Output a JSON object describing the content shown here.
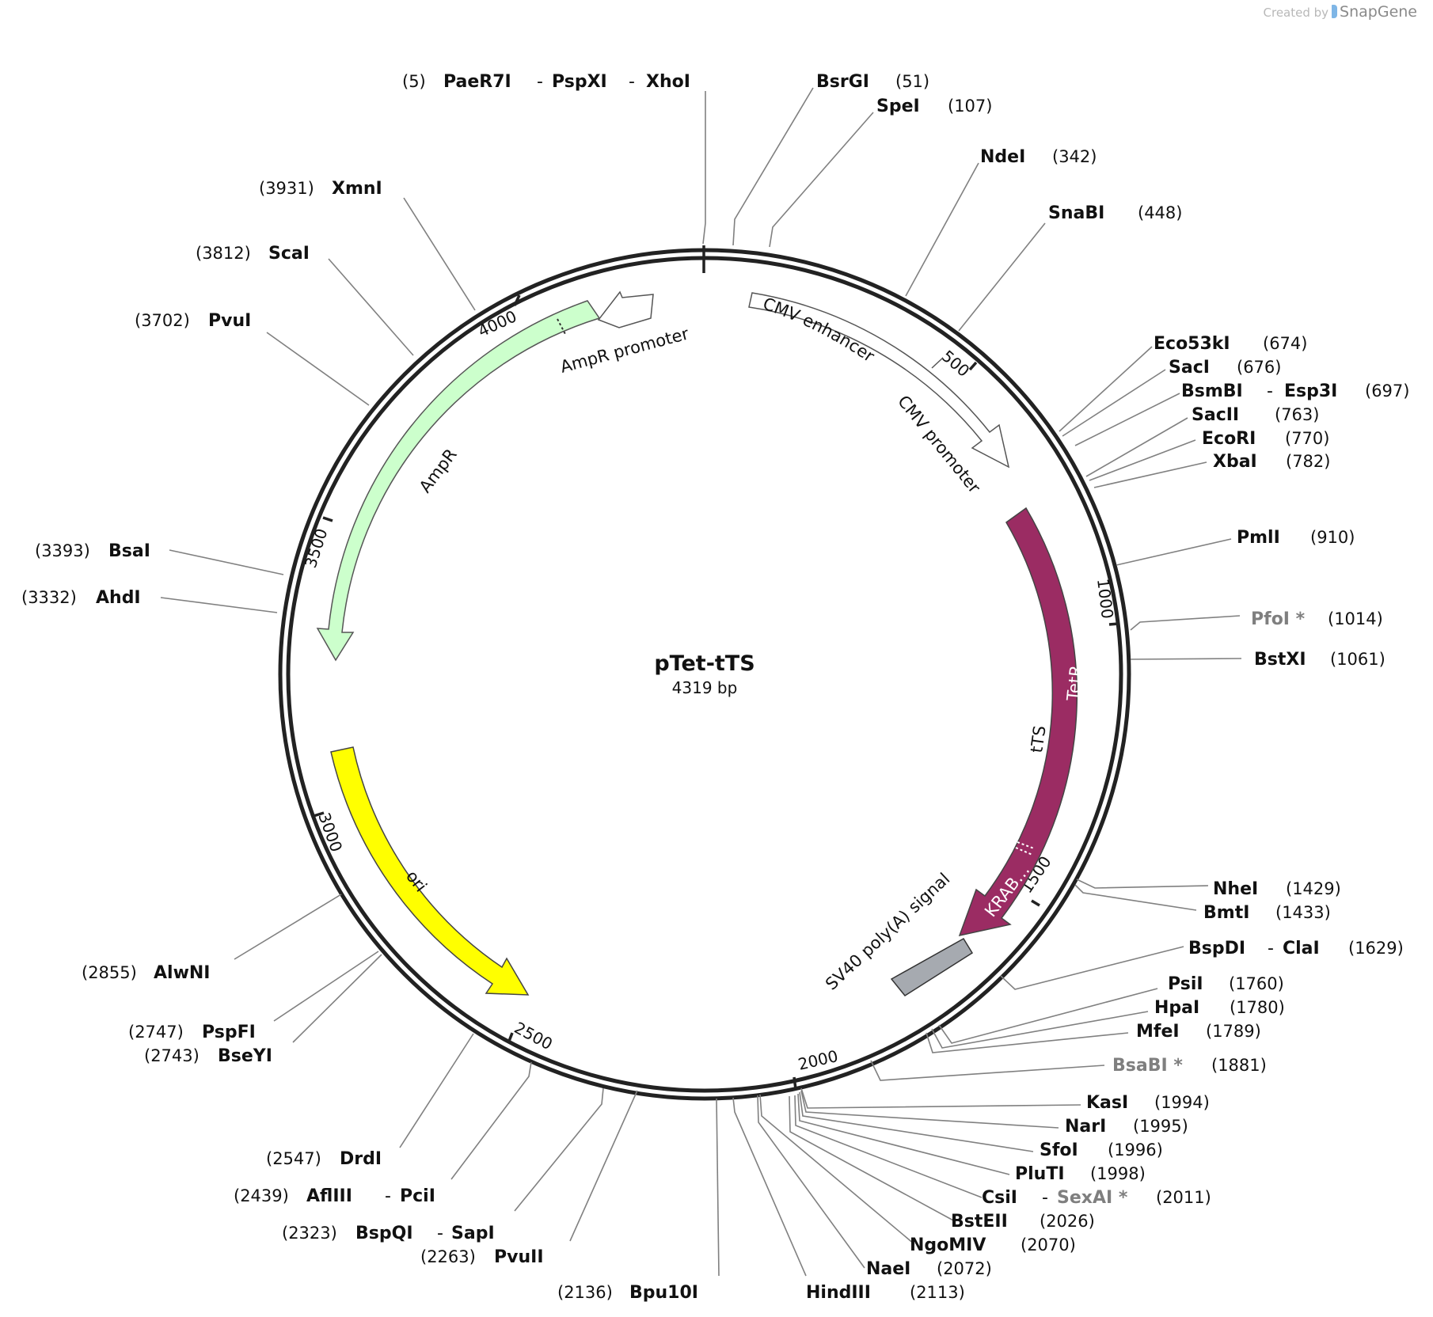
{
  "credit": {
    "prefix": "Created by",
    "brand": "SnapGene"
  },
  "plasmid": {
    "name": "pTet-tTS",
    "size_label": "4319 bp"
  },
  "ticks": [
    "500",
    "1000",
    "1500",
    "2000",
    "2500",
    "3000",
    "3500",
    "4000"
  ],
  "features": [
    {
      "name": "CMV enhancer",
      "type": "enhancer",
      "color": "#ffffff"
    },
    {
      "name": "CMV promoter",
      "type": "promoter",
      "color": "#ffffff"
    },
    {
      "name": "tTS",
      "type": "CDS",
      "color": "#9b2c63"
    },
    {
      "name": "TetR",
      "type": "CDS region",
      "color": "#9b2c63"
    },
    {
      "name": "KRAB…",
      "type": "CDS region",
      "color": "#9b2c63"
    },
    {
      "name": "SV40 poly(A) signal",
      "type": "polyA",
      "color": "#a6aab0"
    },
    {
      "name": "ori",
      "type": "rep_origin",
      "color": "#ffff00"
    },
    {
      "name": "AmpR",
      "type": "CDS",
      "color": "#ccffcc"
    },
    {
      "name": "AmpR promoter",
      "type": "promoter",
      "color": "#ffffff"
    }
  ],
  "sites": [
    {
      "parts": [
        "PaeR7I",
        "-",
        "PspXI",
        "-",
        "XhoI"
      ],
      "pos": "(5)"
    },
    {
      "parts": [
        "BsrGI"
      ],
      "pos": "(51)"
    },
    {
      "parts": [
        "SpeI"
      ],
      "pos": "(107)"
    },
    {
      "parts": [
        "NdeI"
      ],
      "pos": "(342)"
    },
    {
      "parts": [
        "SnaBI"
      ],
      "pos": "(448)"
    },
    {
      "parts": [
        "Eco53kI"
      ],
      "pos": "(674)"
    },
    {
      "parts": [
        "SacI"
      ],
      "pos": "(676)"
    },
    {
      "parts": [
        "BsmBI",
        "-",
        "Esp3I"
      ],
      "pos": "(697)"
    },
    {
      "parts": [
        "SacII"
      ],
      "pos": "(763)"
    },
    {
      "parts": [
        "EcoRI"
      ],
      "pos": "(770)"
    },
    {
      "parts": [
        "XbaI"
      ],
      "pos": "(782)"
    },
    {
      "parts": [
        "PmlI"
      ],
      "pos": "(910)"
    },
    {
      "parts": [
        "PfoI *"
      ],
      "pos": "(1014)"
    },
    {
      "parts": [
        "BstXI"
      ],
      "pos": "(1061)"
    },
    {
      "parts": [
        "NheI"
      ],
      "pos": "(1429)"
    },
    {
      "parts": [
        "BmtI"
      ],
      "pos": "(1433)"
    },
    {
      "parts": [
        "BspDI",
        "-",
        "ClaI"
      ],
      "pos": "(1629)"
    },
    {
      "parts": [
        "PsiI"
      ],
      "pos": "(1760)"
    },
    {
      "parts": [
        "HpaI"
      ],
      "pos": "(1780)"
    },
    {
      "parts": [
        "MfeI"
      ],
      "pos": "(1789)"
    },
    {
      "parts": [
        "BsaBI *"
      ],
      "pos": "(1881)"
    },
    {
      "parts": [
        "KasI"
      ],
      "pos": "(1994)"
    },
    {
      "parts": [
        "NarI"
      ],
      "pos": "(1995)"
    },
    {
      "parts": [
        "SfoI"
      ],
      "pos": "(1996)"
    },
    {
      "parts": [
        "PluTI"
      ],
      "pos": "(1998)"
    },
    {
      "parts": [
        "CsiI",
        "-",
        "SexAI *"
      ],
      "pos": "(2011)"
    },
    {
      "parts": [
        "BstEII"
      ],
      "pos": "(2026)"
    },
    {
      "parts": [
        "NgoMIV"
      ],
      "pos": "(2070)"
    },
    {
      "parts": [
        "NaeI"
      ],
      "pos": "(2072)"
    },
    {
      "parts": [
        "HindIII"
      ],
      "pos": "(2113)"
    },
    {
      "parts": [
        "Bpu10I"
      ],
      "pos": "(2136)"
    },
    {
      "parts": [
        "PvuII"
      ],
      "pos": "(2263)"
    },
    {
      "parts": [
        "BspQI",
        "-",
        "SapI"
      ],
      "pos": "(2323)"
    },
    {
      "parts": [
        "AflIII",
        "-",
        "PciI"
      ],
      "pos": "(2439)"
    },
    {
      "parts": [
        "DrdI"
      ],
      "pos": "(2547)"
    },
    {
      "parts": [
        "BseYI"
      ],
      "pos": "(2743)"
    },
    {
      "parts": [
        "PspFI"
      ],
      "pos": "(2747)"
    },
    {
      "parts": [
        "AlwNI"
      ],
      "pos": "(2855)"
    },
    {
      "parts": [
        "AhdI"
      ],
      "pos": "(3332)"
    },
    {
      "parts": [
        "BsaI"
      ],
      "pos": "(3393)"
    },
    {
      "parts": [
        "PvuI"
      ],
      "pos": "(3702)"
    },
    {
      "parts": [
        "ScaI"
      ],
      "pos": "(3812)"
    },
    {
      "parts": [
        "XmnI"
      ],
      "pos": "(3931)"
    }
  ]
}
